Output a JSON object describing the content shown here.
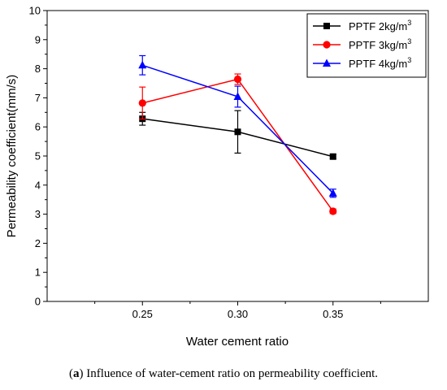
{
  "chart_data": {
    "type": "line",
    "xlabel": "Water cement ratio",
    "ylabel": "Permeability coefficient(mm/s)",
    "xlim": [
      0.2,
      0.4
    ],
    "ylim": [
      0,
      10
    ],
    "x_ticks": [
      "0.25",
      "0.30",
      "0.35"
    ],
    "x": [
      0.25,
      0.3,
      0.35
    ],
    "y_ticks": [
      "0",
      "1",
      "2",
      "3",
      "4",
      "5",
      "6",
      "7",
      "8",
      "9",
      "10"
    ],
    "grid": false,
    "legend_position": "top-right",
    "series": [
      {
        "name": "PPTF 2kg/m",
        "superscript": "3",
        "color": "#000000",
        "marker": "square",
        "values": [
          6.28,
          5.83,
          4.98
        ],
        "errors": [
          0.22,
          0.73,
          0.07
        ]
      },
      {
        "name": "PPTF 3kg/m",
        "superscript": "3",
        "color": "#ff0000",
        "marker": "circle",
        "values": [
          6.82,
          7.64,
          3.1
        ],
        "errors": [
          0.55,
          0.18,
          0.08
        ]
      },
      {
        "name": "PPTF 4kg/m",
        "superscript": "3",
        "color": "#0000ff",
        "marker": "triangle",
        "values": [
          8.12,
          7.04,
          3.72
        ],
        "errors": [
          0.33,
          0.36,
          0.14
        ]
      }
    ]
  },
  "caption": {
    "label": "a",
    "text": " Influence of water-cement ratio on permeability coefficient."
  }
}
